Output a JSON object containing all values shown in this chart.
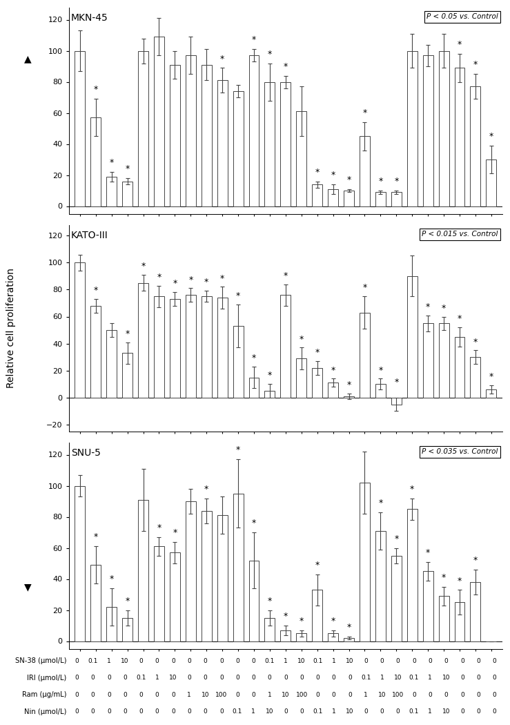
{
  "panels": [
    {
      "title": "MKN-45",
      "p_label": "P < 0.05 vs. Control",
      "ylim": [
        -5,
        128
      ],
      "yticks": [
        0,
        20,
        40,
        60,
        80,
        100,
        120
      ],
      "bars": [
        100,
        57,
        19,
        16,
        100,
        109,
        91,
        97,
        91,
        81,
        74,
        97,
        80,
        80,
        61,
        14,
        11,
        10,
        45,
        9,
        9,
        100,
        97,
        100,
        89,
        77,
        30
      ],
      "errors": [
        13,
        12,
        3,
        2,
        8,
        12,
        9,
        12,
        10,
        8,
        4,
        4,
        12,
        4,
        16,
        2,
        3,
        1,
        9,
        1,
        1,
        11,
        7,
        11,
        9,
        8,
        9
      ],
      "sig": [
        false,
        true,
        true,
        true,
        false,
        false,
        false,
        false,
        false,
        true,
        false,
        true,
        true,
        true,
        false,
        true,
        true,
        true,
        true,
        true,
        true,
        false,
        false,
        false,
        true,
        true,
        true
      ]
    },
    {
      "title": "KATO-III",
      "p_label": "P < 0.015 vs. Control",
      "ylim": [
        -25,
        128
      ],
      "yticks": [
        -20,
        0,
        20,
        40,
        60,
        80,
        100,
        120
      ],
      "bars": [
        100,
        68,
        50,
        33,
        85,
        75,
        73,
        76,
        75,
        74,
        53,
        15,
        5,
        76,
        29,
        22,
        11,
        1,
        63,
        10,
        -5,
        90,
        55,
        55,
        45,
        30,
        6
      ],
      "errors": [
        6,
        5,
        5,
        8,
        6,
        8,
        5,
        5,
        4,
        8,
        16,
        8,
        5,
        8,
        8,
        5,
        3,
        2,
        12,
        4,
        5,
        15,
        6,
        5,
        7,
        5,
        3
      ],
      "sig": [
        false,
        true,
        false,
        true,
        true,
        true,
        true,
        true,
        true,
        true,
        true,
        true,
        true,
        true,
        true,
        true,
        true,
        true,
        true,
        true,
        true,
        false,
        true,
        true,
        true,
        true,
        true
      ]
    },
    {
      "title": "SNU-5",
      "p_label": "P < 0.035 vs. Control",
      "ylim": [
        -5,
        128
      ],
      "yticks": [
        0,
        20,
        40,
        60,
        80,
        100,
        120
      ],
      "bars": [
        100,
        49,
        22,
        15,
        91,
        61,
        57,
        90,
        84,
        81,
        95,
        52,
        15,
        7,
        5,
        33,
        5,
        2,
        102,
        71,
        55,
        85,
        45,
        29,
        25,
        38,
        0
      ],
      "errors": [
        7,
        12,
        12,
        5,
        20,
        6,
        7,
        8,
        8,
        12,
        22,
        18,
        5,
        3,
        2,
        10,
        2,
        1,
        20,
        12,
        5,
        7,
        6,
        6,
        8,
        8,
        0
      ],
      "sig": [
        false,
        true,
        true,
        true,
        false,
        true,
        true,
        false,
        true,
        false,
        true,
        true,
        true,
        true,
        true,
        true,
        true,
        true,
        false,
        true,
        true,
        true,
        true,
        true,
        true,
        true,
        false
      ]
    }
  ],
  "sn38_labels": [
    "0",
    "0.1",
    "1",
    "10",
    "0",
    "0",
    "0",
    "0",
    "0",
    "0",
    "0",
    "0",
    "0.1",
    "1",
    "10",
    "0.1",
    "1",
    "10",
    "0",
    "0",
    "0",
    "0",
    "0",
    "0",
    "0",
    "0",
    "0"
  ],
  "iri_labels": [
    "0",
    "0",
    "0",
    "0",
    "0.1",
    "1",
    "10",
    "0",
    "0",
    "0",
    "0",
    "0",
    "0",
    "0",
    "0",
    "0",
    "0",
    "0",
    "0.1",
    "1",
    "10",
    "0.1",
    "1",
    "10",
    "0",
    "0",
    "0"
  ],
  "ram_labels": [
    "0",
    "0",
    "0",
    "0",
    "0",
    "0",
    "0",
    "1",
    "10",
    "100",
    "0",
    "0",
    "1",
    "10",
    "100",
    "0",
    "0",
    "0",
    "1",
    "10",
    "100",
    "0",
    "0",
    "0",
    "0",
    "0",
    "0"
  ],
  "nin_labels": [
    "0",
    "0",
    "0",
    "0",
    "0",
    "0",
    "0",
    "0",
    "0",
    "0",
    "0.1",
    "1",
    "10",
    "0",
    "0",
    "0.1",
    "1",
    "10",
    "0",
    "0",
    "0",
    "0.1",
    "1",
    "10",
    "0",
    "0",
    "0"
  ],
  "ylabel": "Relative cell proliferation",
  "bar_color": "white",
  "bar_edgecolor": "#444444",
  "error_color": "#444444"
}
